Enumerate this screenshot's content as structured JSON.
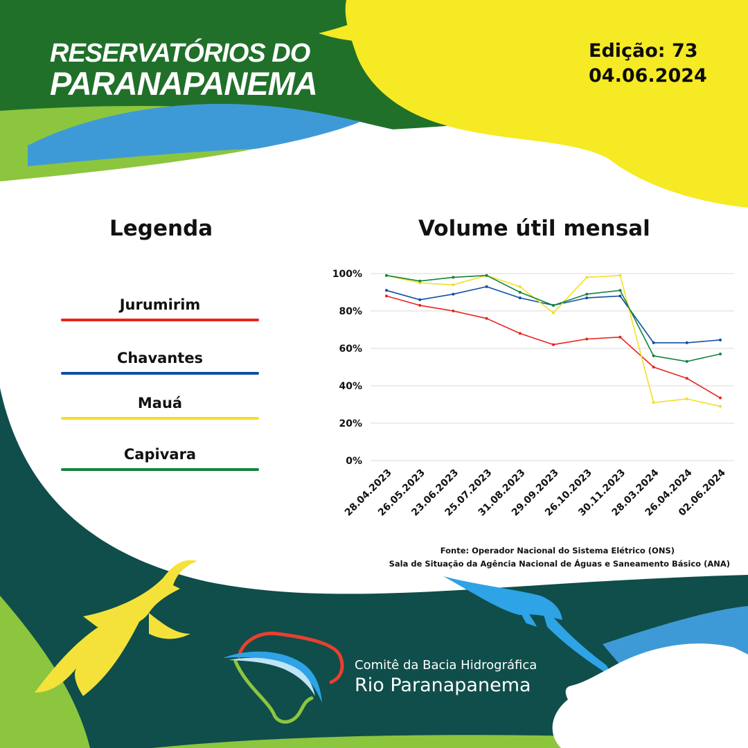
{
  "header": {
    "title_line1": "RESERVATÓRIOS DO",
    "title_line2": "PARANAPANEMA",
    "edition": "Edição: 73",
    "date": "04.06.2024"
  },
  "legend": {
    "title": "Legenda",
    "items": [
      {
        "label": "Jurumirim",
        "color": "#e8221c"
      },
      {
        "label": "Chavantes",
        "color": "#0d4ea6"
      },
      {
        "label": "Mauá",
        "color": "#f2e022"
      },
      {
        "label": "Capivara",
        "color": "#13843a"
      }
    ]
  },
  "chart_data": {
    "type": "line",
    "title": "Volume útil mensal",
    "categories": [
      "28.04.2023",
      "26.05.2023",
      "23.06.2023",
      "25.07.2023",
      "31.08.2023",
      "29.09.2023",
      "26.10.2023",
      "30.11.2023",
      "28.03.2024",
      "26.04.2024",
      "02.06.2024"
    ],
    "ylim": [
      0,
      100
    ],
    "yticks": [
      "0%",
      "20%",
      "40%",
      "60%",
      "80%",
      "100%"
    ],
    "grid": true,
    "series": [
      {
        "name": "Jurumirim",
        "color": "#e8221c",
        "values": [
          88,
          83,
          80,
          76,
          68,
          62,
          65,
          66,
          50,
          44,
          33.5
        ]
      },
      {
        "name": "Chavantes",
        "color": "#0d4ea6",
        "values": [
          91,
          86,
          89,
          93,
          87,
          83,
          87,
          88,
          63,
          63,
          64.5
        ]
      },
      {
        "name": "Mauá",
        "color": "#f2e022",
        "values": [
          99,
          95,
          94,
          99,
          93,
          79,
          98,
          99,
          31,
          33,
          29
        ]
      },
      {
        "name": "Capivara",
        "color": "#13843a",
        "values": [
          99,
          96,
          98,
          99,
          90,
          83,
          89,
          91,
          56,
          53,
          57
        ]
      }
    ]
  },
  "source": {
    "line1": "Fonte: Operador Nacional do Sistema Elétrico (ONS)",
    "line2": "Sala de Situação da Agência Nacional de Águas e Saneamento Básico (ANA)"
  },
  "logo": {
    "line1": "Comitê da Bacia Hidrográfica",
    "line2": "Rio Paranapanema"
  },
  "colors": {
    "dark_green": "#20702a",
    "light_green": "#8cc63e",
    "yellow": "#f5ea23",
    "blue": "#3e9ad6",
    "teal": "#0f4e4a",
    "cyan_bird": "#2ea3e6",
    "yellow_bird": "#f4e23a"
  }
}
